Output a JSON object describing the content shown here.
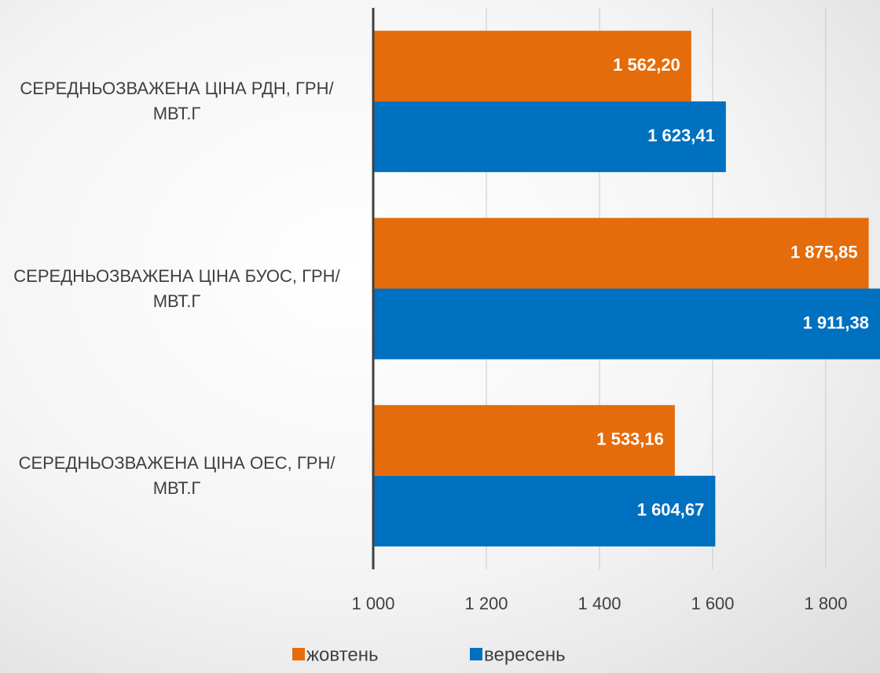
{
  "chart_data": {
    "type": "barh",
    "categories": [
      "СЕРЕДНЬОЗВАЖЕНА ЦІНА РДН, ГРН/МВТ.Г",
      "СЕРЕДНЬОЗВАЖЕНА ЦІНА БУОС, ГРН/МВТ.Г",
      "СЕРЕДНЬОЗВАЖЕНА ЦІНА ОЕС, ГРН/МВТ.Г"
    ],
    "series": [
      {
        "name": "жовтень",
        "color": "#e46c0a",
        "values": [
          1562.2,
          1875.85,
          1533.16
        ],
        "value_labels": [
          "1 562,20",
          "1 875,85",
          "1 533,16"
        ]
      },
      {
        "name": "вересень",
        "color": "#0070c0",
        "values": [
          1623.41,
          1911.38,
          1604.67
        ],
        "value_labels": [
          "1 623,41",
          "1 911,38",
          "1 604,67"
        ]
      }
    ],
    "xlim": [
      1000,
      1900
    ],
    "xticks": [
      {
        "value": 1000,
        "label": "1 000"
      },
      {
        "value": 1200,
        "label": "1 200"
      },
      {
        "value": 1400,
        "label": "1 400"
      },
      {
        "value": 1600,
        "label": "1 600"
      },
      {
        "value": 1800,
        "label": "1 800"
      }
    ],
    "grid": true,
    "legend": "bottom"
  }
}
